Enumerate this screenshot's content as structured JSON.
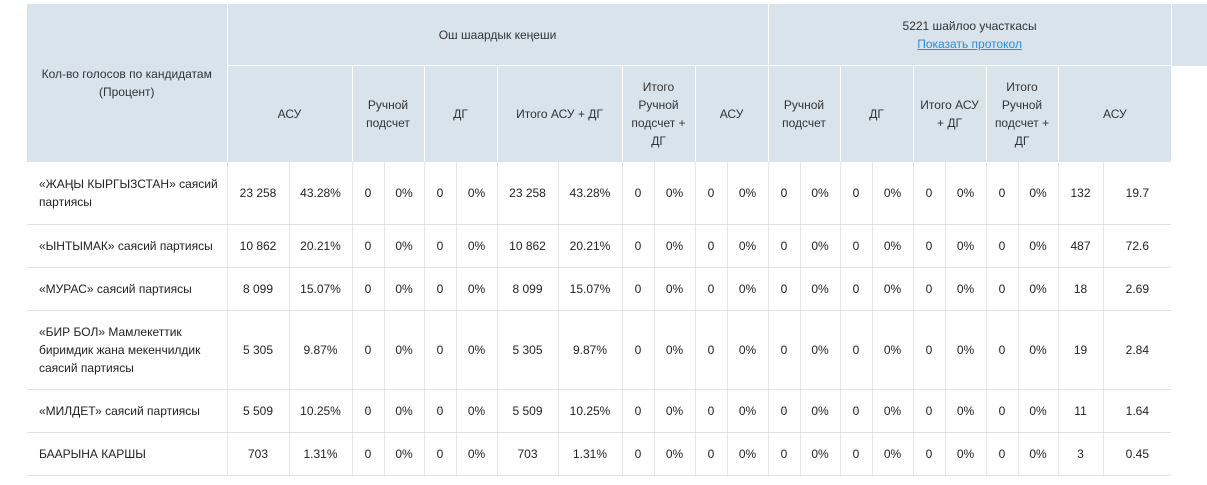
{
  "header": {
    "candidates_col": "Кол-во голосов по кандидатам (Процент)",
    "group1": {
      "title": "Ош шаардык кеңеши"
    },
    "group2": {
      "title": "5221 шайлоо участкасы",
      "link": "Показать протокол"
    },
    "sub1": {
      "asu": "АСУ",
      "manual": "Ручной подсчет",
      "dg": "ДГ",
      "total": "Итого АСУ + ДГ",
      "total_manual": "Итого Ручной подсчет + ДГ"
    },
    "sub2": {
      "asu": "АСУ",
      "manual": "Ручной подсчет",
      "dg": "ДГ",
      "total": "Итого АСУ + ДГ",
      "total_manual": "Итого Ручной подсчет + ДГ"
    },
    "sub3": {
      "asu": "АСУ"
    }
  },
  "rows": [
    {
      "name": "«ЖАҢЫ КЫРГЫЗСТАН» саясий партиясы",
      "cells": [
        "23 258",
        "43.28%",
        "0",
        "0%",
        "0",
        "0%",
        "23 258",
        "43.28%",
        "0",
        "0%",
        "0",
        "0%",
        "0",
        "0%",
        "0",
        "0%",
        "0",
        "0%",
        "0",
        "0%",
        "132",
        "19.7"
      ]
    },
    {
      "name": "«ЫНТЫМАК» саясий партиясы",
      "cells": [
        "10 862",
        "20.21%",
        "0",
        "0%",
        "0",
        "0%",
        "10 862",
        "20.21%",
        "0",
        "0%",
        "0",
        "0%",
        "0",
        "0%",
        "0",
        "0%",
        "0",
        "0%",
        "0",
        "0%",
        "487",
        "72.6"
      ]
    },
    {
      "name": "«МУРАС» саясий партиясы",
      "cells": [
        "8 099",
        "15.07%",
        "0",
        "0%",
        "0",
        "0%",
        "8 099",
        "15.07%",
        "0",
        "0%",
        "0",
        "0%",
        "0",
        "0%",
        "0",
        "0%",
        "0",
        "0%",
        "0",
        "0%",
        "18",
        "2.69"
      ]
    },
    {
      "name": "«БИР БОЛ» Мамлекеттик биримдик жана мекенчилдик саясий партиясы",
      "cells": [
        "5 305",
        "9.87%",
        "0",
        "0%",
        "0",
        "0%",
        "5 305",
        "9.87%",
        "0",
        "0%",
        "0",
        "0%",
        "0",
        "0%",
        "0",
        "0%",
        "0",
        "0%",
        "0",
        "0%",
        "19",
        "2.84"
      ]
    },
    {
      "name": "«МИЛДЕТ» саясий партиясы",
      "cells": [
        "5 509",
        "10.25%",
        "0",
        "0%",
        "0",
        "0%",
        "5 509",
        "10.25%",
        "0",
        "0%",
        "0",
        "0%",
        "0",
        "0%",
        "0",
        "0%",
        "0",
        "0%",
        "0",
        "0%",
        "11",
        "1.64"
      ]
    },
    {
      "name": "БААРЫНА КАРШЫ",
      "cells": [
        "703",
        "1.31%",
        "0",
        "0%",
        "0",
        "0%",
        "703",
        "1.31%",
        "0",
        "0%",
        "0",
        "0%",
        "0",
        "0%",
        "0",
        "0%",
        "0",
        "0%",
        "0",
        "0%",
        "3",
        "0.45"
      ]
    }
  ]
}
